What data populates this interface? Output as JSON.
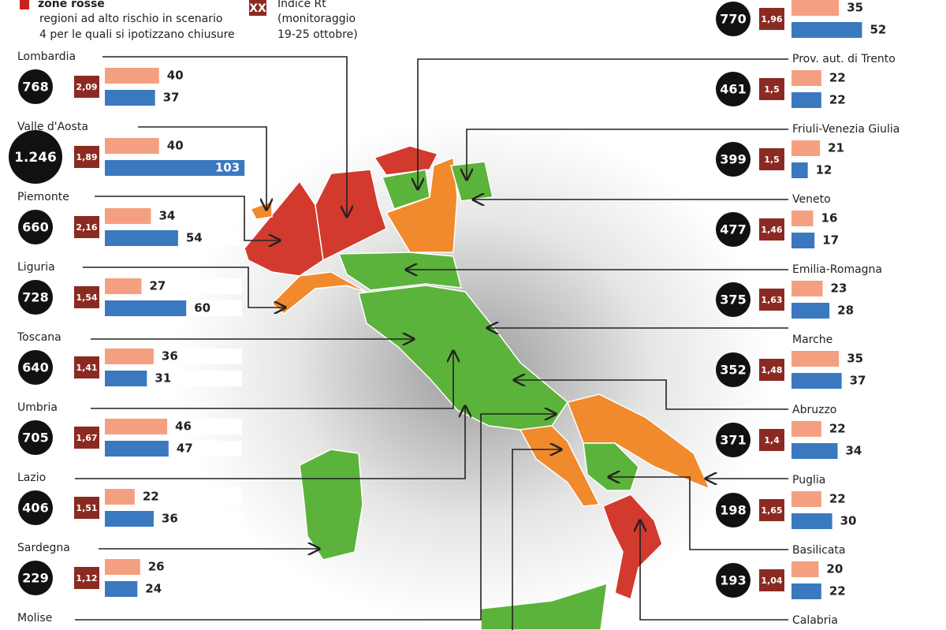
{
  "legend": {
    "red_title": "zone rosse",
    "red_line1": "regioni ad alto rischio in scenario",
    "red_line2": "4 per le quali si ipotizzano chiusure",
    "rt_box": "XX",
    "rt_title": "Indice Rt",
    "rt_line1": "(monitoraggio",
    "rt_line2": "19-25 ottobre)"
  },
  "left": [
    {
      "name": "Lombardia",
      "incidence": "768",
      "rt": "2,09",
      "orange": 40,
      "blue": 37
    },
    {
      "name": "Valle d'Aosta",
      "incidence": "1.246",
      "rt": "1,89",
      "orange": 40,
      "blue": 103
    },
    {
      "name": "Piemonte",
      "incidence": "660",
      "rt": "2,16",
      "orange": 34,
      "blue": 54
    },
    {
      "name": "Liguria",
      "incidence": "728",
      "rt": "1,54",
      "orange": 27,
      "blue": 60
    },
    {
      "name": "Toscana",
      "incidence": "640",
      "rt": "1,41",
      "orange": 36,
      "blue": 31
    },
    {
      "name": "Umbria",
      "incidence": "705",
      "rt": "1,67",
      "orange": 46,
      "blue": 47
    },
    {
      "name": "Lazio",
      "incidence": "406",
      "rt": "1,51",
      "orange": 22,
      "blue": 36
    },
    {
      "name": "Sardegna",
      "incidence": "229",
      "rt": "1,12",
      "orange": 26,
      "blue": 24
    },
    {
      "name": "Molise"
    }
  ],
  "right": [
    {
      "incidence": "770",
      "rt": "1,96",
      "orange": 35,
      "blue": 52
    },
    {
      "name": "Prov. aut. di Trento",
      "incidence": "461",
      "rt": "1,5",
      "orange": 22,
      "blue": 22
    },
    {
      "name": "Friuli-Venezia Giulia",
      "incidence": "399",
      "rt": "1,5",
      "orange": 21,
      "blue": 12
    },
    {
      "name": "Veneto",
      "incidence": "477",
      "rt": "1,46",
      "orange": 16,
      "blue": 17
    },
    {
      "name": "Emilia-Romagna",
      "incidence": "375",
      "rt": "1,63",
      "orange": 23,
      "blue": 28
    },
    {
      "name": "Marche",
      "incidence": "352",
      "rt": "1,48",
      "orange": 35,
      "blue": 37
    },
    {
      "name": "Abruzzo",
      "incidence": "371",
      "rt": "1,4",
      "orange": 22,
      "blue": 34
    },
    {
      "name": "Puglia",
      "incidence": "198",
      "rt": "1,65",
      "orange": 22,
      "blue": 30
    },
    {
      "name": "Basilicata",
      "incidence": "193",
      "rt": "1,04",
      "orange": 20,
      "blue": 22
    },
    {
      "name": "Calabria"
    }
  ]
}
